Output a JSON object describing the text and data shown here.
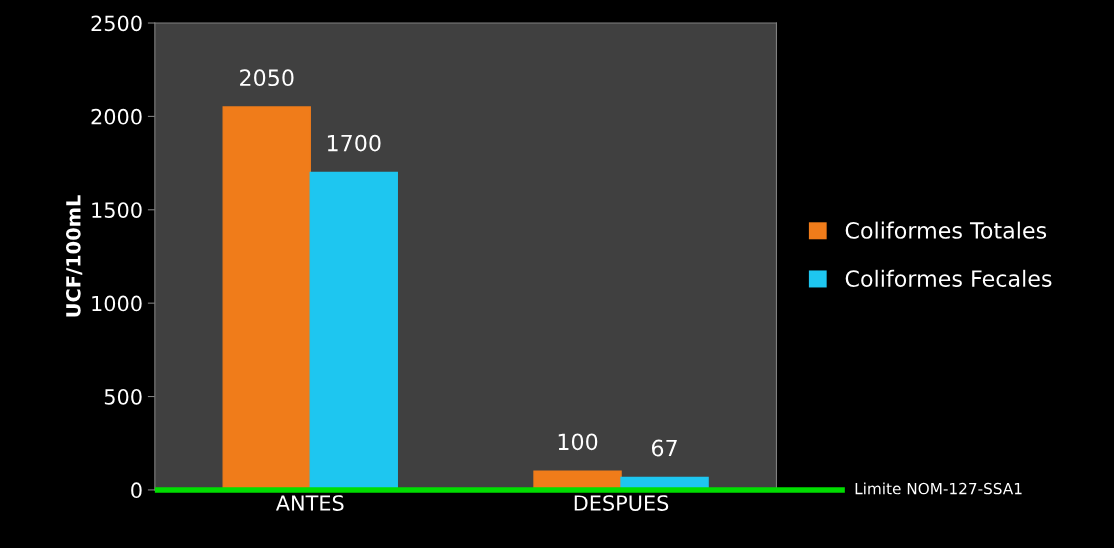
{
  "chart_data": {
    "type": "bar",
    "ylabel": "UCF/100mL",
    "categories": [
      "ANTES",
      "DESPUES"
    ],
    "series": [
      {
        "name": "Coliformes Totales",
        "color": "#f07c1a",
        "values": [
          2050,
          100
        ]
      },
      {
        "name": "Coliformes Fecales",
        "color": "#1ec6f0",
        "values": [
          1700,
          67
        ]
      }
    ],
    "ylim": [
      0,
      2500
    ],
    "yticks": [
      0,
      500,
      1000,
      1500,
      2000,
      2500
    ],
    "data_labels": true,
    "grid": false,
    "legend": "right",
    "ref_lines": [
      {
        "axis": "y",
        "value": 0,
        "label": "Limite NOM-127-SSA1",
        "color": "#00dd00",
        "line_style": "solid"
      }
    ]
  }
}
